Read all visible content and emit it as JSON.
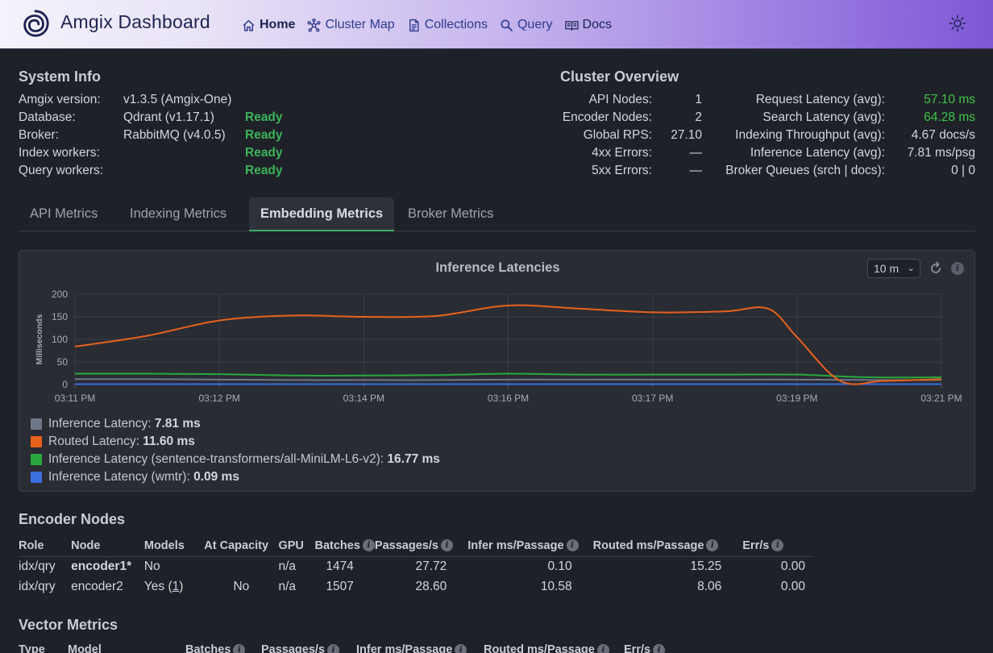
{
  "header": {
    "brand": "Amgix Dashboard",
    "nav": [
      {
        "label": "Home",
        "icon": "home-icon"
      },
      {
        "label": "Cluster Map",
        "icon": "cluster-icon"
      },
      {
        "label": "Collections",
        "icon": "document-icon"
      },
      {
        "label": "Query",
        "icon": "search-icon"
      },
      {
        "label": "Docs",
        "icon": "book-icon"
      }
    ],
    "theme_icon": "sun-icon"
  },
  "system_info": {
    "title": "System Info",
    "rows": [
      {
        "label": "Amgix version:",
        "value": "v1.3.5 (Amgix-One)",
        "status": ""
      },
      {
        "label": "Database:",
        "value": "Qdrant (v1.17.1)",
        "status": "Ready"
      },
      {
        "label": "Broker:",
        "value": "RabbitMQ (v4.0.5)",
        "status": "Ready"
      },
      {
        "label": "Index workers:",
        "value": "",
        "status": "Ready"
      },
      {
        "label": "Query workers:",
        "value": "",
        "status": "Ready"
      }
    ]
  },
  "cluster_overview": {
    "title": "Cluster Overview",
    "left": [
      {
        "label": "API Nodes:",
        "value": "1"
      },
      {
        "label": "Encoder Nodes:",
        "value": "2"
      },
      {
        "label": "Global RPS:",
        "value": "27.10"
      },
      {
        "label": "4xx Errors:",
        "value": "—"
      },
      {
        "label": "5xx Errors:",
        "value": "—"
      }
    ],
    "right": [
      {
        "label": "Request Latency (avg):",
        "value": "57.10 ms"
      },
      {
        "label": "Search Latency (avg):",
        "value": "64.28 ms"
      },
      {
        "label": "Indexing Throughput (avg):",
        "value": "4.67 docs/s"
      },
      {
        "label": "Inference Latency (avg):",
        "value": "7.81 ms/psg"
      },
      {
        "label": "Broker Queues (srch | docs):",
        "value": "0 | 0"
      }
    ]
  },
  "tabs": [
    "API Metrics",
    "Indexing Metrics",
    "Embedding Metrics",
    "Broker Metrics"
  ],
  "active_tab": 2,
  "chart_panel": {
    "range": "10 m",
    "colors": {
      "grid": "#3b3e46",
      "axis": "#4b4e57",
      "gray": "#6e7787",
      "orange": "#e8611c",
      "green": "#29a83d",
      "blue": "#3a6fe0"
    }
  },
  "chart_data": {
    "type": "line",
    "title": "Inference Latencies",
    "ylabel": "Milliseconds",
    "ylim": [
      0,
      200
    ],
    "yticks": [
      0,
      50,
      100,
      150,
      200
    ],
    "xticks": [
      "03:11 PM",
      "03:12 PM",
      "03:14 PM",
      "03:16 PM",
      "03:17 PM",
      "03:19 PM",
      "03:21 PM"
    ],
    "xlim": [
      0,
      6
    ],
    "series": [
      {
        "name": "Inference Latency",
        "summary": "7.81 ms",
        "color": "#6e7787",
        "x": [
          0,
          0.5,
          1,
          1.5,
          2,
          2.5,
          3,
          3.5,
          4,
          4.5,
          5,
          5.5,
          6
        ],
        "y": [
          12,
          12,
          11,
          10,
          10,
          10,
          11,
          11,
          11,
          11,
          11,
          10,
          10
        ]
      },
      {
        "name": "Routed Latency",
        "summary": "11.60 ms",
        "color": "#e8611c",
        "x": [
          0,
          0.5,
          1,
          1.5,
          2,
          2.5,
          3,
          3.5,
          4,
          4.5,
          4.8,
          5,
          5.3,
          5.6,
          6
        ],
        "y": [
          84,
          108,
          142,
          153,
          150,
          152,
          175,
          168,
          160,
          162,
          168,
          105,
          8,
          8,
          12
        ]
      },
      {
        "name": "Inference Latency (sentence-transformers/all-MiniLM-L6-v2)",
        "summary": "16.77 ms",
        "color": "#29a83d",
        "x": [
          0,
          0.5,
          1,
          1.5,
          2,
          2.5,
          3,
          3.5,
          4,
          4.5,
          5,
          5.5,
          6
        ],
        "y": [
          24,
          24,
          23,
          20,
          20,
          21,
          24,
          22,
          22,
          22,
          22,
          16,
          16
        ]
      },
      {
        "name": "Inference Latency (wmtr)",
        "summary": "0.09 ms",
        "color": "#3a6fe0",
        "x": [
          0,
          1,
          2,
          3,
          4,
          5,
          6
        ],
        "y": [
          1,
          1,
          1,
          1,
          1,
          1,
          1
        ]
      }
    ]
  },
  "encoder_nodes": {
    "title": "Encoder Nodes",
    "columns": [
      "Role",
      "Node",
      "Models",
      "At Capacity",
      "GPU",
      "Batches",
      "Passages/s",
      "Infer ms/Passage",
      "Routed ms/Passage",
      "Err/s"
    ],
    "rows": [
      {
        "role": "idx/qry",
        "node": "encoder1*",
        "models": "No",
        "models_link": "",
        "at_capacity": "",
        "gpu": "n/a",
        "batches": "1474",
        "passages": "27.72",
        "infer": "0.10",
        "routed": "15.25",
        "err": "0.00"
      },
      {
        "role": "idx/qry",
        "node": "encoder2",
        "models": "Yes (",
        "models_link": "1",
        "at_capacity": "No",
        "gpu": "n/a",
        "batches": "1507",
        "passages": "28.60",
        "infer": "10.58",
        "routed": "8.06",
        "err": "0.00"
      }
    ]
  },
  "vector_metrics": {
    "title": "Vector Metrics",
    "columns": [
      "Type",
      "Model",
      "Batches",
      "Passages/s",
      "Infer ms/Passage",
      "Routed ms/Passage",
      "Err/s"
    ]
  }
}
